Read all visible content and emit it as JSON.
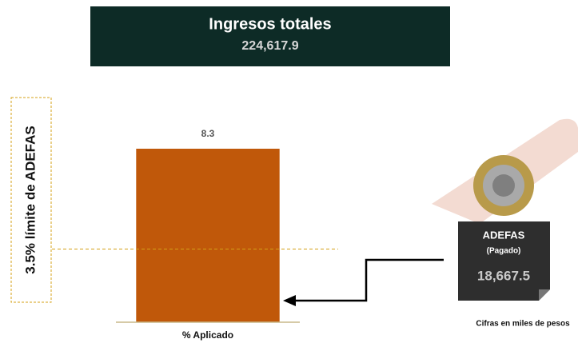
{
  "header": {
    "title": "Ingresos totales",
    "value": "224,617.9"
  },
  "chart_data": {
    "type": "bar",
    "categories": [
      "% Aplicado"
    ],
    "values": [
      8.3
    ],
    "color": "#c0580a",
    "ylim": [
      0,
      8.3
    ],
    "reference_line": {
      "value": 3.5,
      "label": "3.5% límite de ADEFAS",
      "color": "#d4a017"
    }
  },
  "callout": {
    "title": "ADEFAS",
    "subtitle": "(Pagado)",
    "value": "18,667.5"
  },
  "note": "Cifras en miles de pesos"
}
